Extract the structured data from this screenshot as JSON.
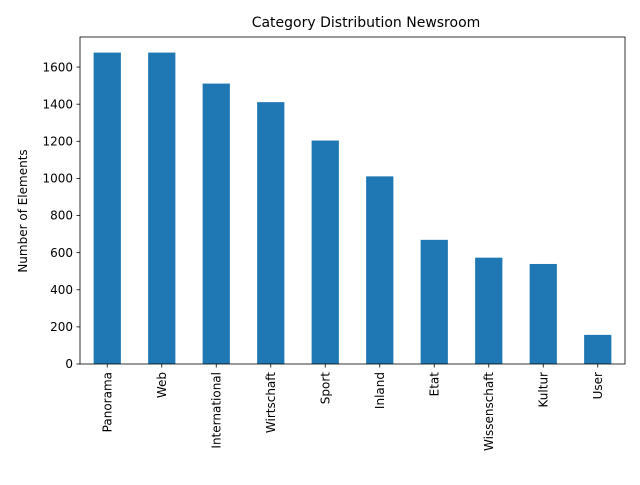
{
  "chart_data": {
    "type": "bar",
    "title": "Category Distribution Newsroom",
    "xlabel": "",
    "ylabel": "Number of Elements",
    "categories": [
      "Panorama",
      "Web",
      "International",
      "Wirtschaft",
      "Sport",
      "Inland",
      "Etat",
      "Wissenschaft",
      "Kultur",
      "User"
    ],
    "values": [
      1678,
      1678,
      1511,
      1411,
      1204,
      1011,
      669,
      573,
      539,
      157
    ],
    "ylim": [
      0,
      1762
    ],
    "yticks": [
      0,
      200,
      400,
      600,
      800,
      1000,
      1200,
      1400,
      1600
    ],
    "bar_color": "#1f77b4",
    "grid": false,
    "legend": "none"
  }
}
